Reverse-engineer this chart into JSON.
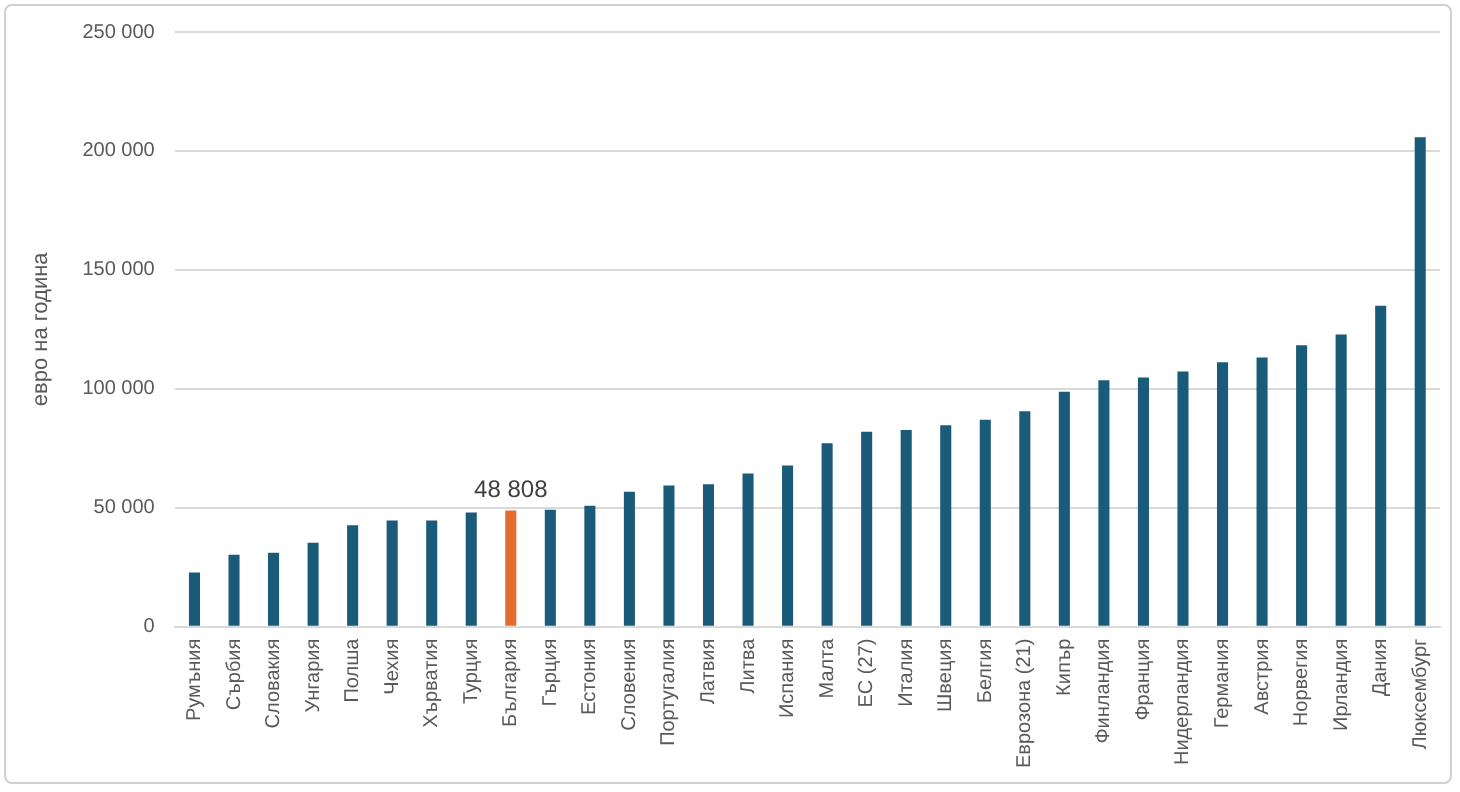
{
  "chart_data": {
    "type": "bar",
    "ylabel": "евро на година",
    "categories": [
      "Румъния",
      "Сърбия",
      "Словакия",
      "Унгария",
      "Полша",
      "Чехия",
      "Хърватия",
      "Турция",
      "България",
      "Гърция",
      "Естония",
      "Словения",
      "Португалия",
      "Латвия",
      "Литва",
      "Испания",
      "Малта",
      "ЕС (27)",
      "Италия",
      "Швеция",
      "Белгия",
      "Еврозона (21)",
      "Кипър",
      "Финландия",
      "Франция",
      "Нидерландия",
      "Германия",
      "Австрия",
      "Норвегия",
      "Ирландия",
      "Дания",
      "Люксембург"
    ],
    "values": [
      22800,
      30200,
      31100,
      35300,
      42600,
      44600,
      44600,
      48000,
      48808,
      49100,
      50800,
      56700,
      59300,
      59900,
      64400,
      67800,
      77100,
      81900,
      82700,
      84700,
      87000,
      90600,
      98800,
      103600,
      104800,
      107300,
      111200,
      113200,
      118300,
      122800,
      134900,
      205800
    ],
    "colors": [
      "#1a5b7a",
      "#1a5b7a",
      "#1a5b7a",
      "#1a5b7a",
      "#1a5b7a",
      "#1a5b7a",
      "#1a5b7a",
      "#1a5b7a",
      "#e46c2c",
      "#1a5b7a",
      "#1a5b7a",
      "#1a5b7a",
      "#1a5b7a",
      "#1a5b7a",
      "#1a5b7a",
      "#1a5b7a",
      "#1a5b7a",
      "#1a5b7a",
      "#1a5b7a",
      "#1a5b7a",
      "#1a5b7a",
      "#1a5b7a",
      "#1a5b7a",
      "#1a5b7a",
      "#1a5b7a",
      "#1a5b7a",
      "#1a5b7a",
      "#1a5b7a",
      "#1a5b7a",
      "#1a5b7a",
      "#1a5b7a",
      "#1a5b7a"
    ],
    "value_labels": [
      null,
      null,
      null,
      null,
      null,
      null,
      null,
      null,
      "48 808",
      null,
      null,
      null,
      null,
      null,
      null,
      null,
      null,
      null,
      null,
      null,
      null,
      null,
      null,
      null,
      null,
      null,
      null,
      null,
      null,
      null,
      null,
      null
    ],
    "ylim": [
      0,
      250000
    ],
    "yticks": [
      {
        "value": 0,
        "label": "0"
      },
      {
        "value": 50000,
        "label": "50 000"
      },
      {
        "value": 100000,
        "label": "100 000"
      },
      {
        "value": 150000,
        "label": "150 000"
      },
      {
        "value": 200000,
        "label": "200 000"
      },
      {
        "value": 250000,
        "label": "250 000"
      }
    ],
    "grid": "y",
    "legend": false
  }
}
